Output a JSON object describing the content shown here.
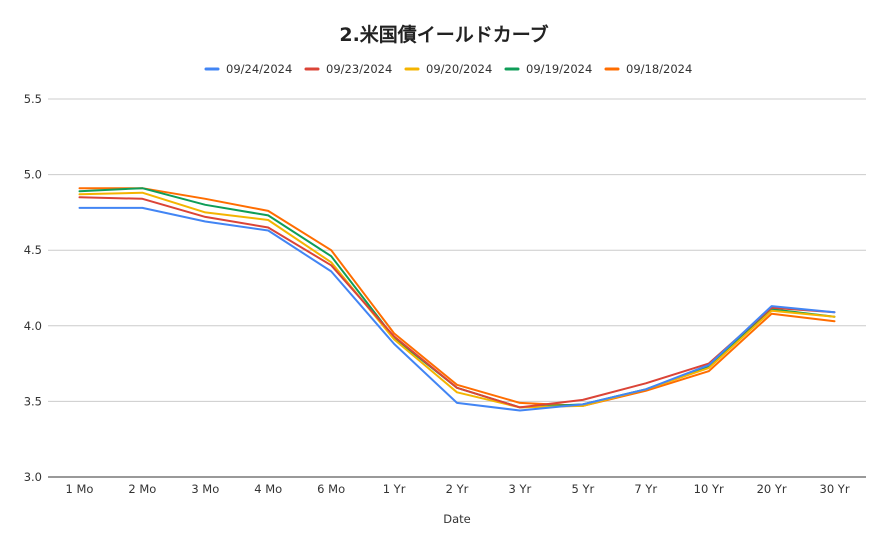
{
  "chart_data": {
    "type": "line",
    "title": "2.米国債イールドカーブ",
    "xlabel": "Date",
    "ylabel": "",
    "categories": [
      "1 Mo",
      "2 Mo",
      "3 Mo",
      "4 Mo",
      "6 Mo",
      "1 Yr",
      "2 Yr",
      "3 Yr",
      "5 Yr",
      "7 Yr",
      "10 Yr",
      "20 Yr",
      "30 Yr"
    ],
    "ylim": [
      3.0,
      5.5
    ],
    "yticks": [
      "3.0",
      "3.5",
      "4.0",
      "4.5",
      "5.0",
      "5.5"
    ],
    "grid": true,
    "legend_position": "top",
    "series": [
      {
        "name": "09/24/2024",
        "color": "#4285f4",
        "values": [
          4.78,
          4.78,
          4.69,
          4.63,
          4.36,
          3.88,
          3.49,
          3.44,
          3.48,
          3.58,
          3.74,
          4.13,
          4.09
        ]
      },
      {
        "name": "09/23/2024",
        "color": "#db4437",
        "values": [
          4.85,
          4.84,
          4.72,
          4.65,
          4.4,
          3.93,
          3.59,
          3.46,
          3.51,
          3.62,
          3.75,
          4.12,
          4.09
        ]
      },
      {
        "name": "09/20/2024",
        "color": "#f4b400",
        "values": [
          4.87,
          4.88,
          4.75,
          4.7,
          4.42,
          3.91,
          3.56,
          3.46,
          3.47,
          3.58,
          3.72,
          4.1,
          4.06
        ]
      },
      {
        "name": "09/19/2024",
        "color": "#0f9d58",
        "values": [
          4.89,
          4.91,
          4.8,
          4.73,
          4.46,
          3.92,
          3.59,
          3.46,
          3.48,
          3.58,
          3.73,
          4.11,
          4.06
        ]
      },
      {
        "name": "09/18/2024",
        "color": "#ff6d00",
        "values": [
          4.91,
          4.91,
          4.84,
          4.76,
          4.5,
          3.95,
          3.61,
          3.49,
          3.47,
          3.57,
          3.7,
          4.08,
          4.03
        ]
      }
    ]
  }
}
